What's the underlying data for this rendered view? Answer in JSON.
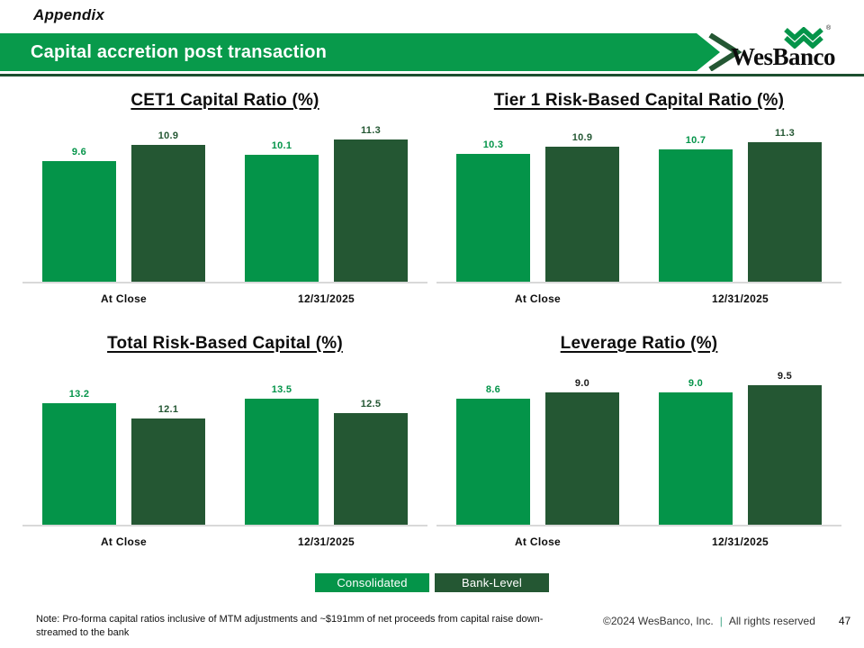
{
  "slide": {
    "eyebrow": "Appendix",
    "banner_title": "Capital accretion post transaction",
    "logo_text": "WesBanco",
    "registered_mark": "®"
  },
  "colors": {
    "consolidated_green": "#049449",
    "bank_level_green": "#245733",
    "banner_green": "#089a4b",
    "rule_green": "#1c4f2f",
    "value_label_green": "#049449",
    "value_label_dark_green": "#245733",
    "value_label_black": "#1a1a1a"
  },
  "legend": [
    {
      "label": "Consolidated",
      "color": "#049449"
    },
    {
      "label": "Bank-Level",
      "color": "#245733"
    }
  ],
  "chart_data": [
    {
      "type": "bar",
      "title": "CET1 Capital Ratio (%)",
      "categories": [
        "At Close",
        "12/31/2025"
      ],
      "series": [
        {
          "name": "Consolidated",
          "values": [
            9.6,
            10.1
          ],
          "color": "#049449",
          "label_color": "#049449"
        },
        {
          "name": "Bank-Level",
          "values": [
            10.9,
            11.3
          ],
          "color": "#245733",
          "label_color": "#245733"
        }
      ],
      "ylim": [
        0,
        11.8
      ],
      "grid": false,
      "legend_position": "bottom-shared"
    },
    {
      "type": "bar",
      "title": "Tier 1 Risk-Based Capital Ratio (%)",
      "categories": [
        "At Close",
        "12/31/2025"
      ],
      "series": [
        {
          "name": "Consolidated",
          "values": [
            10.3,
            10.7
          ],
          "color": "#049449",
          "label_color": "#049449"
        },
        {
          "name": "Bank-Level",
          "values": [
            10.9,
            11.3
          ],
          "color": "#245733",
          "label_color": "#245733"
        }
      ],
      "ylim": [
        0,
        12.0
      ],
      "grid": false,
      "legend_position": "bottom-shared"
    },
    {
      "type": "bar",
      "title": "Total Risk-Based Capital (%)",
      "categories": [
        "At Close",
        "12/31/2025"
      ],
      "series": [
        {
          "name": "Consolidated",
          "values": [
            13.2,
            13.5
          ],
          "color": "#049449",
          "label_color": "#049449"
        },
        {
          "name": "Bank-Level",
          "values": [
            12.1,
            12.5
          ],
          "color": "#245733",
          "label_color": "#245733"
        }
      ],
      "ylim": [
        4.8,
        15.05
      ],
      "grid": false,
      "legend_position": "bottom-shared"
    },
    {
      "type": "bar",
      "title": "Leverage Ratio (%)",
      "categories": [
        "At Close",
        "12/31/2025"
      ],
      "series": [
        {
          "name": "Consolidated",
          "values": [
            8.6,
            9.0
          ],
          "color": "#049449",
          "label_color": "#049449"
        },
        {
          "name": "Bank-Level",
          "values": [
            9.0,
            9.5
          ],
          "color": "#245733",
          "label_color": "#1a1a1a"
        }
      ],
      "ylim": [
        0,
        10.1
      ],
      "grid": false,
      "legend_position": "bottom-shared"
    }
  ],
  "footnote": {
    "text": "Note: Pro-forma capital ratios inclusive of MTM adjustments and ~$191mm of net proceeds from capital raise down-streamed to the bank"
  },
  "footer": {
    "copyright": "©2024 WesBanco, Inc.",
    "divider": "|",
    "rights": "All rights reserved",
    "page_number": "47"
  }
}
